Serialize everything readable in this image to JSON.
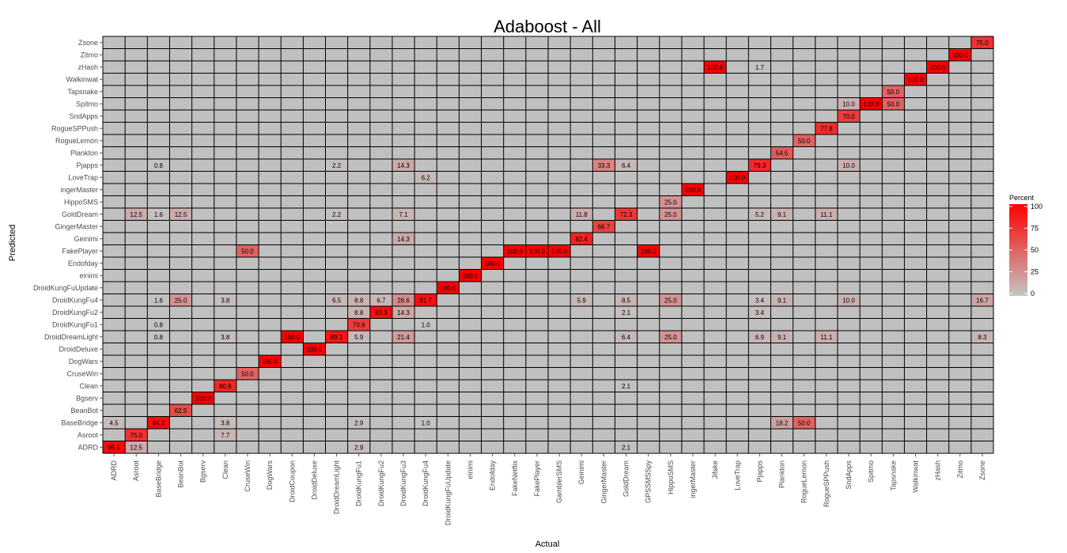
{
  "chart_data": {
    "type": "heatmap",
    "title": "Adaboost - All",
    "xlabel": "Actual",
    "ylabel": "Predicted",
    "x_categories": [
      "ADRD",
      "Asroot",
      "BaseBridge",
      "BeanBot",
      "Bgserv",
      "Clean",
      "CruseWin",
      "DogWars",
      "DroidCoupon",
      "DroidDeluxe",
      "DroidDreamLight",
      "DroidKungFu1",
      "DroidKungFu2",
      "DroidKungFu3",
      "DroidKungFu4",
      "DroidKungFuUpdate",
      "einimi",
      "Endofday",
      "FakeNetflix",
      "FakePlayer",
      "GamblerSMS",
      "Geinimi",
      "GingerMaster",
      "GoldDream",
      "GPSSMSSpy",
      "HippoSMS",
      "ingerMaster",
      "Jifake",
      "LoveTrap",
      "Pjapps",
      "Plankton",
      "RogueLemon",
      "RogueSPPush",
      "SndApps",
      "Spitmo",
      "Tapsnake",
      "Walkinwat",
      "zHash",
      "Zitmo",
      "Zsone"
    ],
    "y_categories": [
      "ADRD",
      "Asroot",
      "BaseBridge",
      "BeanBot",
      "Bgserv",
      "Clean",
      "CruseWin",
      "DogWars",
      "DroidDeluxe",
      "DroidDreamLight",
      "DroidKungFu1",
      "DroidKungFu2",
      "DroidKungFu4",
      "DroidKungFuUpdate",
      "einimi",
      "Endofday",
      "FakePlayer",
      "Geinimi",
      "GingerMaster",
      "GoldDream",
      "HippoSMS",
      "ingerMaster",
      "LoveTrap",
      "Pjapps",
      "Plankton",
      "RogueLemon",
      "RogueSPPush",
      "SndApps",
      "Spitmo",
      "Tapsnake",
      "Walkinwat",
      "zHash",
      "Zitmo",
      "Zsone"
    ],
    "cells": [
      {
        "x": "ADRD",
        "y": "ADRD",
        "value": 95.5
      },
      {
        "x": "Asroot",
        "y": "ADRD",
        "value": 12.5
      },
      {
        "x": "DroidKungFu1",
        "y": "ADRD",
        "value": 2.9
      },
      {
        "x": "GoldDream",
        "y": "ADRD",
        "value": 2.1
      },
      {
        "x": "Asroot",
        "y": "Asroot",
        "value": 75.0
      },
      {
        "x": "Clean",
        "y": "Asroot",
        "value": 7.7
      },
      {
        "x": "ADRD",
        "y": "BaseBridge",
        "value": 4.5
      },
      {
        "x": "BaseBridge",
        "y": "BaseBridge",
        "value": 94.3
      },
      {
        "x": "Clean",
        "y": "BaseBridge",
        "value": 3.8
      },
      {
        "x": "DroidKungFu1",
        "y": "BaseBridge",
        "value": 2.9
      },
      {
        "x": "DroidKungFu4",
        "y": "BaseBridge",
        "value": 1.0
      },
      {
        "x": "Plankton",
        "y": "BaseBridge",
        "value": 18.2
      },
      {
        "x": "RogueLemon",
        "y": "BaseBridge",
        "value": 50.0
      },
      {
        "x": "BeanBot",
        "y": "BeanBot",
        "value": 62.5
      },
      {
        "x": "Bgserv",
        "y": "Bgserv",
        "value": 100.0
      },
      {
        "x": "Clean",
        "y": "Clean",
        "value": 80.8
      },
      {
        "x": "GoldDream",
        "y": "Clean",
        "value": 2.1
      },
      {
        "x": "CruseWin",
        "y": "CruseWin",
        "value": 50.0
      },
      {
        "x": "DogWars",
        "y": "DogWars",
        "value": 100.0
      },
      {
        "x": "DroidDeluxe",
        "y": "DroidDeluxe",
        "value": 100.0
      },
      {
        "x": "BaseBridge",
        "y": "DroidDreamLight",
        "value": 0.8
      },
      {
        "x": "Clean",
        "y": "DroidDreamLight",
        "value": 3.8
      },
      {
        "x": "DroidCoupon",
        "y": "DroidDreamLight",
        "value": 100.0
      },
      {
        "x": "DroidDreamLight",
        "y": "DroidDreamLight",
        "value": 89.1
      },
      {
        "x": "DroidKungFu1",
        "y": "DroidDreamLight",
        "value": 5.9
      },
      {
        "x": "DroidKungFu3",
        "y": "DroidDreamLight",
        "value": 21.4
      },
      {
        "x": "GoldDream",
        "y": "DroidDreamLight",
        "value": 6.4
      },
      {
        "x": "HippoSMS",
        "y": "DroidDreamLight",
        "value": 25.0
      },
      {
        "x": "Pjapps",
        "y": "DroidDreamLight",
        "value": 6.9
      },
      {
        "x": "Plankton",
        "y": "DroidDreamLight",
        "value": 9.1
      },
      {
        "x": "RogueSPPush",
        "y": "DroidDreamLight",
        "value": 11.1
      },
      {
        "x": "Zsone",
        "y": "DroidDreamLight",
        "value": 8.3
      },
      {
        "x": "BaseBridge",
        "y": "DroidKungFu1",
        "value": 0.8
      },
      {
        "x": "DroidKungFu1",
        "y": "DroidKungFu1",
        "value": 70.6
      },
      {
        "x": "DroidKungFu4",
        "y": "DroidKungFu1",
        "value": 1.0
      },
      {
        "x": "DroidKungFu1",
        "y": "DroidKungFu2",
        "value": 8.8
      },
      {
        "x": "DroidKungFu2",
        "y": "DroidKungFu2",
        "value": 93.3
      },
      {
        "x": "DroidKungFu3",
        "y": "DroidKungFu2",
        "value": 14.3
      },
      {
        "x": "GoldDream",
        "y": "DroidKungFu2",
        "value": 2.1
      },
      {
        "x": "Pjapps",
        "y": "DroidKungFu2",
        "value": 3.4
      },
      {
        "x": "BaseBridge",
        "y": "DroidKungFu4",
        "value": 1.6
      },
      {
        "x": "BeanBot",
        "y": "DroidKungFu4",
        "value": 25.0
      },
      {
        "x": "Clean",
        "y": "DroidKungFu4",
        "value": 3.8
      },
      {
        "x": "DroidDreamLight",
        "y": "DroidKungFu4",
        "value": 6.5
      },
      {
        "x": "DroidKungFu1",
        "y": "DroidKungFu4",
        "value": 8.8
      },
      {
        "x": "DroidKungFu2",
        "y": "DroidKungFu4",
        "value": 6.7
      },
      {
        "x": "DroidKungFu3",
        "y": "DroidKungFu4",
        "value": 28.6
      },
      {
        "x": "DroidKungFu4",
        "y": "DroidKungFu4",
        "value": 91.7
      },
      {
        "x": "Geinimi",
        "y": "DroidKungFu4",
        "value": 5.9
      },
      {
        "x": "GoldDream",
        "y": "DroidKungFu4",
        "value": 8.5
      },
      {
        "x": "HippoSMS",
        "y": "DroidKungFu4",
        "value": 25.0
      },
      {
        "x": "Pjapps",
        "y": "DroidKungFu4",
        "value": 3.4
      },
      {
        "x": "Plankton",
        "y": "DroidKungFu4",
        "value": 9.1
      },
      {
        "x": "SndApps",
        "y": "DroidKungFu4",
        "value": 10.0
      },
      {
        "x": "Zsone",
        "y": "DroidKungFu4",
        "value": 16.7
      },
      {
        "x": "DroidKungFuUpdate",
        "y": "DroidKungFuUpdate",
        "value": 100.0
      },
      {
        "x": "einimi",
        "y": "einimi",
        "value": 100.0
      },
      {
        "x": "Endofday",
        "y": "Endofday",
        "value": 100.0
      },
      {
        "x": "CruseWin",
        "y": "FakePlayer",
        "value": 50.0
      },
      {
        "x": "FakeNetflix",
        "y": "FakePlayer",
        "value": 100.0
      },
      {
        "x": "FakePlayer",
        "y": "FakePlayer",
        "value": 100.0
      },
      {
        "x": "GamblerSMS",
        "y": "FakePlayer",
        "value": 100.0
      },
      {
        "x": "GPSSMSSpy",
        "y": "FakePlayer",
        "value": 100.0
      },
      {
        "x": "DroidKungFu3",
        "y": "Geinimi",
        "value": 14.3
      },
      {
        "x": "Geinimi",
        "y": "Geinimi",
        "value": 82.4
      },
      {
        "x": "GingerMaster",
        "y": "GingerMaster",
        "value": 66.7
      },
      {
        "x": "Asroot",
        "y": "GoldDream",
        "value": 12.5
      },
      {
        "x": "BaseBridge",
        "y": "GoldDream",
        "value": 1.6
      },
      {
        "x": "BeanBot",
        "y": "GoldDream",
        "value": 12.5
      },
      {
        "x": "DroidDreamLight",
        "y": "GoldDream",
        "value": 2.2
      },
      {
        "x": "DroidKungFu3",
        "y": "GoldDream",
        "value": 7.1
      },
      {
        "x": "Geinimi",
        "y": "GoldDream",
        "value": 11.8
      },
      {
        "x": "GoldDream",
        "y": "GoldDream",
        "value": 72.3
      },
      {
        "x": "HippoSMS",
        "y": "GoldDream",
        "value": 25.0
      },
      {
        "x": "Pjapps",
        "y": "GoldDream",
        "value": 5.2
      },
      {
        "x": "Plankton",
        "y": "GoldDream",
        "value": 9.1
      },
      {
        "x": "RogueSPPush",
        "y": "GoldDream",
        "value": 11.1
      },
      {
        "x": "HippoSMS",
        "y": "HippoSMS",
        "value": 25.0
      },
      {
        "x": "ingerMaster",
        "y": "ingerMaster",
        "value": 100.0
      },
      {
        "x": "DroidKungFu4",
        "y": "LoveTrap",
        "value": 6.2
      },
      {
        "x": "LoveTrap",
        "y": "LoveTrap",
        "value": 100.0
      },
      {
        "x": "BaseBridge",
        "y": "Pjapps",
        "value": 0.8
      },
      {
        "x": "DroidDreamLight",
        "y": "Pjapps",
        "value": 2.2
      },
      {
        "x": "DroidKungFu3",
        "y": "Pjapps",
        "value": 14.3
      },
      {
        "x": "GingerMaster",
        "y": "Pjapps",
        "value": 33.3
      },
      {
        "x": "GoldDream",
        "y": "Pjapps",
        "value": 6.4
      },
      {
        "x": "Pjapps",
        "y": "Pjapps",
        "value": 79.3
      },
      {
        "x": "SndApps",
        "y": "Pjapps",
        "value": 10.0
      },
      {
        "x": "Plankton",
        "y": "Plankton",
        "value": 54.5
      },
      {
        "x": "RogueLemon",
        "y": "RogueLemon",
        "value": 50.0
      },
      {
        "x": "RogueSPPush",
        "y": "RogueSPPush",
        "value": 77.8
      },
      {
        "x": "SndApps",
        "y": "SndApps",
        "value": 70.0
      },
      {
        "x": "SndApps",
        "y": "Spitmo",
        "value": 10.0
      },
      {
        "x": "Spitmo",
        "y": "Spitmo",
        "value": 100.0
      },
      {
        "x": "Tapsnake",
        "y": "Spitmo",
        "value": 50.0
      },
      {
        "x": "Tapsnake",
        "y": "Tapsnake",
        "value": 50.0
      },
      {
        "x": "Walkinwat",
        "y": "Walkinwat",
        "value": 100.0
      },
      {
        "x": "Jifake",
        "y": "zHash",
        "value": 100.0
      },
      {
        "x": "Pjapps",
        "y": "zHash",
        "value": 1.7
      },
      {
        "x": "zHash",
        "y": "zHash",
        "value": 100.0
      },
      {
        "x": "Zitmo",
        "y": "Zitmo",
        "value": 100.0
      },
      {
        "x": "Zsone",
        "y": "Zsone",
        "value": 75.0
      }
    ],
    "legend": {
      "title": "Percent",
      "ticks": [
        0,
        25,
        50,
        75,
        100
      ],
      "placement": "right",
      "low_color": "#c4c4c4",
      "high_color": "#ff0000"
    },
    "value_range": [
      0,
      100
    ],
    "empty_cell_color": "#c0c0c0",
    "grid": true
  }
}
